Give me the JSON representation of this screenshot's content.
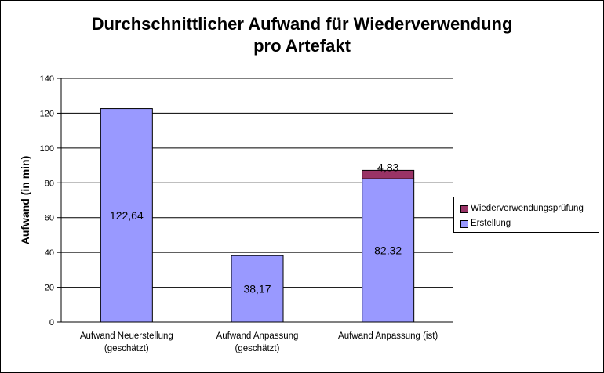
{
  "chart_data": {
    "type": "bar",
    "stacked": true,
    "title_line1": "Durchschnittlicher Aufwand für Wiederverwendung",
    "title_line2": "pro Artefakt",
    "ylabel": "Aufwand (in min)",
    "xlabel": "",
    "ylim": [
      0,
      140
    ],
    "yticks": [
      "0",
      "20",
      "40",
      "60",
      "80",
      "100",
      "120",
      "140"
    ],
    "categories": [
      [
        "Aufwand Neuerstellung",
        "(geschätzt)"
      ],
      [
        "Aufwand Anpassung",
        "(geschätzt)"
      ],
      [
        "Aufwand Anpassung (ist)"
      ]
    ],
    "series": [
      {
        "name": "Erstellung",
        "color": "#9999ff",
        "values": [
          122.64,
          38.17,
          82.32
        ],
        "labels": [
          "122,64",
          "38,17",
          "82,32"
        ]
      },
      {
        "name": "Wiederverwendungsprüfung",
        "color": "#993366",
        "values": [
          0,
          0,
          4.83
        ],
        "labels": [
          "",
          "",
          "4,83"
        ]
      }
    ],
    "legend_entries": [
      "Wiederverwendungsprüfung",
      "Erstellung"
    ],
    "grid": true,
    "legend_position": "right"
  }
}
